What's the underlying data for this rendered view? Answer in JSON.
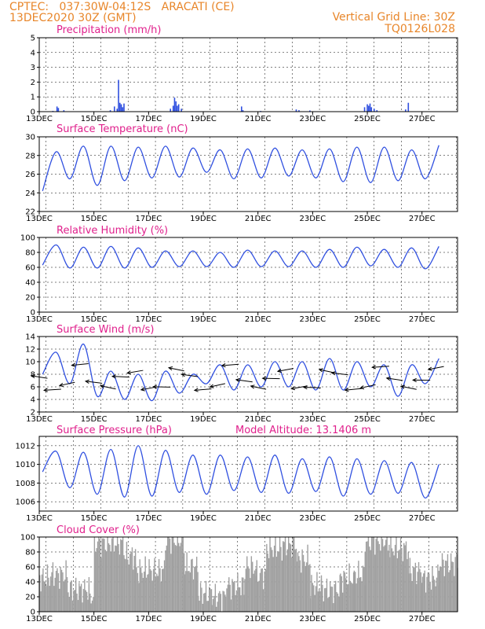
{
  "header": {
    "line1_left": "CPTEC:   037:30W-04:12S   ARACATI (CE)",
    "line2_left": "13DEC2020 30Z (GMT)",
    "line1_right": "Vertical Grid Line: 30Z",
    "line2_right": "TQ0126L028"
  },
  "x_tick_labels": [
    "13DEC",
    "15DEC",
    "17DEC",
    "19DEC",
    "21DEC",
    "23DEC",
    "25DEC",
    "27DEC"
  ],
  "x_start_day": 13,
  "x_end_day": 28.3,
  "colors": {
    "line": "#3050e0",
    "bars": "#3050e0",
    "cloud": "#a0a0a0",
    "title": "#e0208c",
    "header": "#e8862a"
  },
  "chart_data": [
    {
      "type": "bar",
      "id": "precip",
      "title": "Precipitation (mm/h)",
      "ylim": [
        0,
        5
      ],
      "yticks": [
        0,
        1,
        2,
        3,
        4,
        5
      ],
      "points": [
        [
          13.5,
          0.05
        ],
        [
          13.65,
          0.35
        ],
        [
          13.7,
          0.25
        ],
        [
          13.9,
          0.1
        ],
        [
          15.6,
          0.1
        ],
        [
          15.75,
          0.35
        ],
        [
          15.85,
          0.2
        ],
        [
          15.9,
          2.15
        ],
        [
          15.95,
          0.6
        ],
        [
          16.0,
          0.5
        ],
        [
          16.05,
          0.3
        ],
        [
          16.1,
          0.55
        ],
        [
          17.8,
          0.2
        ],
        [
          17.9,
          0.4
        ],
        [
          17.95,
          0.95
        ],
        [
          18.0,
          0.7
        ],
        [
          18.05,
          0.4
        ],
        [
          18.1,
          0.5
        ],
        [
          18.2,
          0.2
        ],
        [
          20.4,
          0.35
        ],
        [
          20.45,
          0.1
        ],
        [
          21.1,
          0.05
        ],
        [
          22.4,
          0.15
        ],
        [
          22.5,
          0.1
        ],
        [
          22.9,
          0.08
        ],
        [
          24.9,
          0.3
        ],
        [
          25.0,
          0.5
        ],
        [
          25.05,
          0.4
        ],
        [
          25.1,
          0.55
        ],
        [
          25.15,
          0.3
        ],
        [
          25.25,
          0.2
        ],
        [
          25.35,
          0.1
        ],
        [
          26.4,
          0.15
        ],
        [
          26.5,
          0.6
        ]
      ]
    },
    {
      "type": "line",
      "id": "temp",
      "title": "Surface Temperature (nC)",
      "ylim": [
        22,
        30
      ],
      "yticks": [
        22,
        24,
        26,
        28,
        30
      ],
      "daily_min": [
        24.2,
        25.5,
        24.8,
        25.3,
        25.6,
        25.7,
        26.2,
        25.5,
        25.6,
        25.8,
        25.6,
        25.2,
        25.1,
        25.3,
        25.5
      ],
      "daily_max": [
        28.4,
        29.0,
        29.0,
        28.9,
        29.0,
        28.8,
        28.6,
        28.7,
        28.8,
        28.6,
        28.7,
        28.9,
        28.9,
        28.6,
        29.1
      ]
    },
    {
      "type": "line",
      "id": "rh",
      "title": "Relative Humidity (%)",
      "ylim": [
        0,
        100
      ],
      "yticks": [
        0,
        20,
        40,
        60,
        80,
        100
      ],
      "daily_min": [
        63,
        59,
        59,
        59,
        60,
        61,
        61,
        60,
        61,
        61,
        60,
        60,
        62,
        60,
        58
      ],
      "daily_max": [
        90,
        87,
        88,
        86,
        82,
        82,
        80,
        83,
        82,
        82,
        84,
        87,
        84,
        86,
        88
      ]
    },
    {
      "type": "line",
      "id": "wind",
      "title": "Surface Wind (m/s)",
      "ylim": [
        2,
        14
      ],
      "yticks": [
        2,
        4,
        6,
        8,
        10,
        12,
        14
      ],
      "daily_min": [
        8.0,
        6.5,
        4.5,
        4.0,
        3.8,
        5.0,
        6.5,
        5.5,
        6.0,
        6.0,
        5.5,
        5.5,
        6.0,
        4.5,
        6.5
      ],
      "daily_max": [
        11.5,
        12.8,
        8.5,
        8.0,
        8.5,
        8.0,
        9.5,
        9.5,
        10.0,
        10.0,
        10.5,
        10.0,
        9.5,
        9.5,
        10.5
      ]
    },
    {
      "type": "line",
      "id": "press",
      "title": "Surface Pressure (hPa)",
      "note": "Model Altitude: 13.1406 m",
      "ylim": [
        1005,
        1013
      ],
      "yticks": [
        1006,
        1008,
        1010,
        1012
      ],
      "daily_min": [
        1009.2,
        1007.5,
        1006.8,
        1006.5,
        1006.6,
        1007.0,
        1006.8,
        1007.2,
        1007.0,
        1006.9,
        1007.1,
        1006.6,
        1006.8,
        1006.9,
        1006.4
      ],
      "daily_max": [
        1011.4,
        1011.3,
        1011.6,
        1012.0,
        1011.5,
        1011.0,
        1011.0,
        1010.8,
        1011.0,
        1010.6,
        1010.8,
        1010.6,
        1010.4,
        1010.2,
        1010.0
      ]
    },
    {
      "type": "area",
      "id": "cloud",
      "title": "Cloud Cover (%)",
      "ylim": [
        0,
        100
      ],
      "yticks": [
        0,
        20,
        40,
        60,
        80,
        100
      ],
      "segments": [
        [
          13.0,
          13.4,
          45
        ],
        [
          13.4,
          14.0,
          50
        ],
        [
          14.0,
          14.8,
          30
        ],
        [
          14.8,
          15.0,
          20
        ],
        [
          15.0,
          16.1,
          92
        ],
        [
          16.1,
          16.5,
          75
        ],
        [
          16.5,
          17.0,
          55
        ],
        [
          17.0,
          17.6,
          55
        ],
        [
          17.6,
          18.3,
          96
        ],
        [
          18.3,
          18.8,
          60
        ],
        [
          18.8,
          19.3,
          25
        ],
        [
          19.3,
          19.8,
          20
        ],
        [
          19.8,
          20.5,
          35
        ],
        [
          20.5,
          20.9,
          60
        ],
        [
          20.9,
          21.3,
          50
        ],
        [
          21.3,
          21.9,
          85
        ],
        [
          21.9,
          22.4,
          90
        ],
        [
          22.4,
          22.9,
          70
        ],
        [
          22.9,
          23.3,
          35
        ],
        [
          23.3,
          24.0,
          30
        ],
        [
          24.0,
          24.5,
          45
        ],
        [
          24.5,
          24.9,
          50
        ],
        [
          24.9,
          25.8,
          95
        ],
        [
          25.8,
          26.5,
          85
        ],
        [
          26.5,
          27.0,
          55
        ],
        [
          27.0,
          27.6,
          45
        ],
        [
          27.6,
          28.3,
          65
        ]
      ]
    }
  ]
}
